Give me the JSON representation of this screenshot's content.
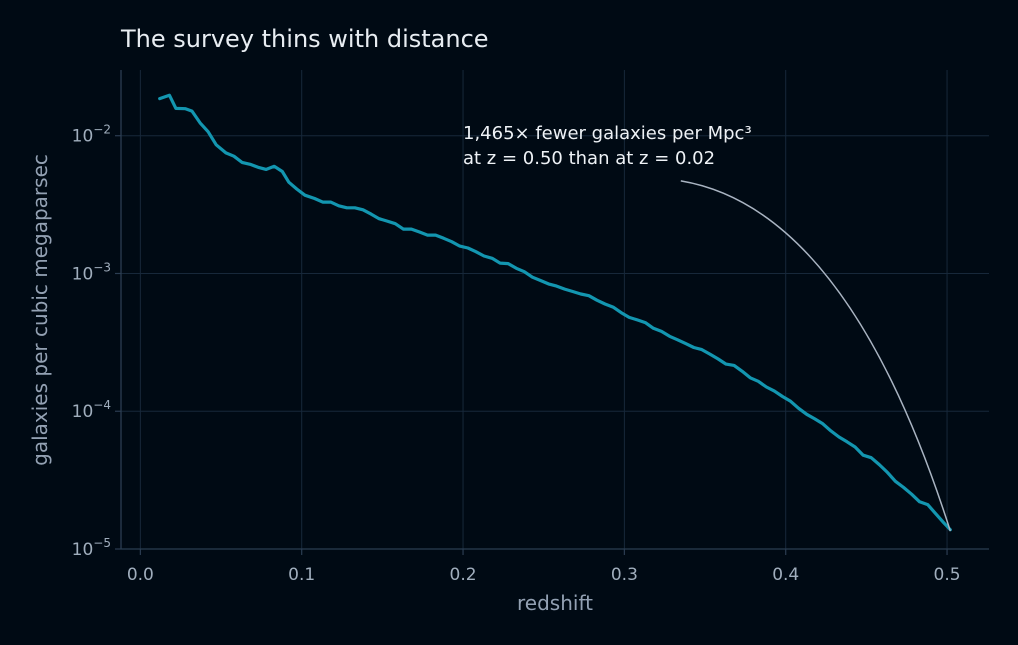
{
  "chart_data": {
    "type": "line",
    "title": "The survey thins with distance",
    "xlabel": "redshift",
    "ylabel": "galaxies per cubic megaparsec",
    "xlim": [
      -0.012,
      0.526
    ],
    "ylim": [
      1e-05,
      0.03
    ],
    "yscale": "log",
    "grid": true,
    "x_ticks": [
      0.0,
      0.1,
      0.2,
      0.3,
      0.4,
      0.5
    ],
    "x_tick_labels": [
      "0.0",
      "0.1",
      "0.2",
      "0.3",
      "0.4",
      "0.5"
    ],
    "y_ticks": [
      1e-05,
      0.0001,
      0.001,
      0.01
    ],
    "y_tick_labels": [
      {
        "base": "10",
        "exp": "−5"
      },
      {
        "base": "10",
        "exp": "−4"
      },
      {
        "base": "10",
        "exp": "−3"
      },
      {
        "base": "10",
        "exp": "−2"
      }
    ],
    "annotation": {
      "lines": [
        "1,465× fewer galaxies per Mpc³",
        "at z = 0.50 than at z = 0.02"
      ],
      "arrow_from": [
        0.335,
        0.0047
      ],
      "arrow_to": [
        0.502,
        1.35e-05
      ]
    },
    "series": [
      {
        "color": "#1396b0",
        "points": [
          [
            0.012,
            0.0186
          ],
          [
            0.018,
            0.0197
          ],
          [
            0.022,
            0.0158
          ],
          [
            0.028,
            0.0157
          ],
          [
            0.032,
            0.0151
          ],
          [
            0.037,
            0.0124
          ],
          [
            0.042,
            0.0107
          ],
          [
            0.047,
            0.0086
          ],
          [
            0.053,
            0.0075
          ],
          [
            0.058,
            0.0071
          ],
          [
            0.063,
            0.0064
          ],
          [
            0.068,
            0.0062
          ],
          [
            0.073,
            0.0059
          ],
          [
            0.078,
            0.0057
          ],
          [
            0.083,
            0.006
          ],
          [
            0.088,
            0.0055
          ],
          [
            0.092,
            0.0046
          ],
          [
            0.097,
            0.0041
          ],
          [
            0.102,
            0.0037
          ],
          [
            0.108,
            0.0035
          ],
          [
            0.113,
            0.0033
          ],
          [
            0.118,
            0.0033
          ],
          [
            0.123,
            0.0031
          ],
          [
            0.128,
            0.003
          ],
          [
            0.133,
            0.003
          ],
          [
            0.138,
            0.0029
          ],
          [
            0.143,
            0.0027
          ],
          [
            0.148,
            0.0025
          ],
          [
            0.153,
            0.0024
          ],
          [
            0.158,
            0.0023
          ],
          [
            0.163,
            0.0021
          ],
          [
            0.168,
            0.0021
          ],
          [
            0.173,
            0.002
          ],
          [
            0.178,
            0.0019
          ],
          [
            0.183,
            0.0019
          ],
          [
            0.188,
            0.0018
          ],
          [
            0.193,
            0.0017
          ],
          [
            0.198,
            0.00158
          ],
          [
            0.203,
            0.00153
          ],
          [
            0.208,
            0.00144
          ],
          [
            0.213,
            0.00134
          ],
          [
            0.218,
            0.00129
          ],
          [
            0.223,
            0.00119
          ],
          [
            0.228,
            0.00118
          ],
          [
            0.233,
            0.00109
          ],
          [
            0.238,
            0.00103
          ],
          [
            0.243,
            0.00094
          ],
          [
            0.248,
            0.00089
          ],
          [
            0.253,
            0.00084
          ],
          [
            0.258,
            0.00081
          ],
          [
            0.263,
            0.00077
          ],
          [
            0.268,
            0.00074
          ],
          [
            0.273,
            0.00071
          ],
          [
            0.278,
            0.00069
          ],
          [
            0.283,
            0.00064
          ],
          [
            0.288,
            0.0006
          ],
          [
            0.293,
            0.00057
          ],
          [
            0.298,
            0.00052
          ],
          [
            0.303,
            0.00048
          ],
          [
            0.308,
            0.00046
          ],
          [
            0.313,
            0.00044
          ],
          [
            0.318,
            0.0004
          ],
          [
            0.323,
            0.00038
          ],
          [
            0.328,
            0.00035
          ],
          [
            0.333,
            0.00033
          ],
          [
            0.338,
            0.00031
          ],
          [
            0.343,
            0.00029
          ],
          [
            0.348,
            0.00028
          ],
          [
            0.353,
            0.00026
          ],
          [
            0.358,
            0.00024
          ],
          [
            0.363,
            0.00022
          ],
          [
            0.368,
            0.000215
          ],
          [
            0.373,
            0.000195
          ],
          [
            0.378,
            0.000175
          ],
          [
            0.383,
            0.000165
          ],
          [
            0.388,
            0.00015
          ],
          [
            0.393,
            0.00014
          ],
          [
            0.398,
            0.000128
          ],
          [
            0.403,
            0.000118
          ],
          [
            0.408,
            0.000105
          ],
          [
            0.413,
            9.5e-05
          ],
          [
            0.418,
            8.8e-05
          ],
          [
            0.423,
            8.1e-05
          ],
          [
            0.428,
            7.2e-05
          ],
          [
            0.433,
            6.5e-05
          ],
          [
            0.438,
            6e-05
          ],
          [
            0.443,
            5.5e-05
          ],
          [
            0.448,
            4.8e-05
          ],
          [
            0.453,
            4.6e-05
          ],
          [
            0.458,
            4.1e-05
          ],
          [
            0.463,
            3.6e-05
          ],
          [
            0.468,
            3.1e-05
          ],
          [
            0.473,
            2.8e-05
          ],
          [
            0.478,
            2.5e-05
          ],
          [
            0.483,
            2.2e-05
          ],
          [
            0.488,
            2.1e-05
          ],
          [
            0.493,
            1.8e-05
          ],
          [
            0.498,
            1.55e-05
          ],
          [
            0.502,
            1.38e-05
          ]
        ]
      }
    ]
  }
}
